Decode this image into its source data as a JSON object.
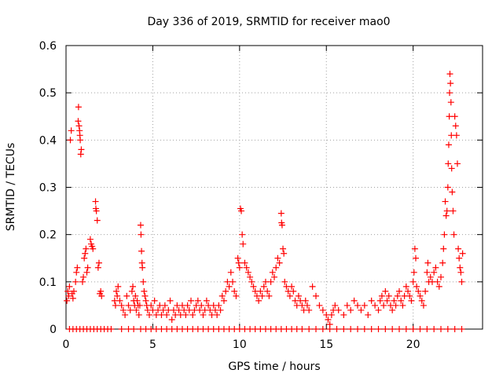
{
  "chart_data": {
    "type": "scatter",
    "title": "Day 336 of 2019, SRMTID for receiver mao0",
    "xlabel": "GPS time / hours",
    "ylabel": "SRMTID / TECUs",
    "xlim": [
      0,
      24
    ],
    "ylim": [
      0,
      0.6
    ],
    "xticks": [
      0,
      5,
      10,
      15,
      20
    ],
    "xtick_labels": [
      "0",
      "5",
      "10",
      "15",
      "20"
    ],
    "yticks": [
      0,
      0.1,
      0.2,
      0.3,
      0.4,
      0.5,
      0.6
    ],
    "ytick_labels": [
      "0",
      "0.1",
      "0.2",
      "0.3",
      "0.4",
      "0.5",
      "0.6"
    ],
    "grid": true,
    "marker": "+",
    "series": [
      {
        "name": "SRMTID",
        "color": "#ff0000",
        "points": [
          [
            0.05,
            0.06
          ],
          [
            0.1,
            0.08
          ],
          [
            0.15,
            0.07
          ],
          [
            0.2,
            0.09
          ],
          [
            0.25,
            0.4
          ],
          [
            0.3,
            0.42
          ],
          [
            0.35,
            0.075
          ],
          [
            0.4,
            0.065
          ],
          [
            0.45,
            0.08
          ],
          [
            0.55,
            0.1
          ],
          [
            0.6,
            0.12
          ],
          [
            0.65,
            0.13
          ],
          [
            0.7,
            0.44
          ],
          [
            0.72,
            0.47
          ],
          [
            0.75,
            0.43
          ],
          [
            0.78,
            0.42
          ],
          [
            0.8,
            0.41
          ],
          [
            0.82,
            0.4
          ],
          [
            0.85,
            0.37
          ],
          [
            0.88,
            0.38
          ],
          [
            0.95,
            0.1
          ],
          [
            1.0,
            0.11
          ],
          [
            1.05,
            0.15
          ],
          [
            1.1,
            0.16
          ],
          [
            1.15,
            0.17
          ],
          [
            1.2,
            0.12
          ],
          [
            1.25,
            0.13
          ],
          [
            1.4,
            0.19
          ],
          [
            1.45,
            0.18
          ],
          [
            1.5,
            0.175
          ],
          [
            1.55,
            0.17
          ],
          [
            1.7,
            0.27
          ],
          [
            1.72,
            0.255
          ],
          [
            1.75,
            0.25
          ],
          [
            1.8,
            0.23
          ],
          [
            1.85,
            0.13
          ],
          [
            1.9,
            0.14
          ],
          [
            1.95,
            0.075
          ],
          [
            2.0,
            0.08
          ],
          [
            2.05,
            0.07
          ],
          [
            2.8,
            0.06
          ],
          [
            2.85,
            0.05
          ],
          [
            2.9,
            0.08
          ],
          [
            2.95,
            0.07
          ],
          [
            3.0,
            0.09
          ],
          [
            3.1,
            0.06
          ],
          [
            3.2,
            0.05
          ],
          [
            3.3,
            0.04
          ],
          [
            3.4,
            0.03
          ],
          [
            3.5,
            0.07
          ],
          [
            3.6,
            0.05
          ],
          [
            3.7,
            0.04
          ],
          [
            3.8,
            0.08
          ],
          [
            3.85,
            0.09
          ],
          [
            3.9,
            0.06
          ],
          [
            3.95,
            0.05
          ],
          [
            4.0,
            0.07
          ],
          [
            4.05,
            0.04
          ],
          [
            4.1,
            0.06
          ],
          [
            4.15,
            0.05
          ],
          [
            4.2,
            0.03
          ],
          [
            4.25,
            0.05
          ],
          [
            4.3,
            0.22
          ],
          [
            4.32,
            0.2
          ],
          [
            4.35,
            0.165
          ],
          [
            4.38,
            0.14
          ],
          [
            4.4,
            0.13
          ],
          [
            4.45,
            0.1
          ],
          [
            4.5,
            0.08
          ],
          [
            4.55,
            0.07
          ],
          [
            4.6,
            0.06
          ],
          [
            4.65,
            0.05
          ],
          [
            4.7,
            0.04
          ],
          [
            4.8,
            0.03
          ],
          [
            4.9,
            0.05
          ],
          [
            5.0,
            0.04
          ],
          [
            5.1,
            0.06
          ],
          [
            5.2,
            0.03
          ],
          [
            5.3,
            0.04
          ],
          [
            5.4,
            0.05
          ],
          [
            5.5,
            0.03
          ],
          [
            5.6,
            0.04
          ],
          [
            5.7,
            0.05
          ],
          [
            5.8,
            0.03
          ],
          [
            5.9,
            0.04
          ],
          [
            6.0,
            0.06
          ],
          [
            6.1,
            0.02
          ],
          [
            6.2,
            0.04
          ],
          [
            6.3,
            0.03
          ],
          [
            6.4,
            0.05
          ],
          [
            6.5,
            0.04
          ],
          [
            6.6,
            0.03
          ],
          [
            6.7,
            0.05
          ],
          [
            6.8,
            0.04
          ],
          [
            6.9,
            0.03
          ],
          [
            7.0,
            0.05
          ],
          [
            7.1,
            0.04
          ],
          [
            7.2,
            0.06
          ],
          [
            7.3,
            0.03
          ],
          [
            7.4,
            0.04
          ],
          [
            7.5,
            0.05
          ],
          [
            7.6,
            0.06
          ],
          [
            7.7,
            0.04
          ],
          [
            7.8,
            0.05
          ],
          [
            7.9,
            0.03
          ],
          [
            8.0,
            0.04
          ],
          [
            8.1,
            0.06
          ],
          [
            8.2,
            0.05
          ],
          [
            8.3,
            0.04
          ],
          [
            8.4,
            0.03
          ],
          [
            8.5,
            0.05
          ],
          [
            8.6,
            0.04
          ],
          [
            8.7,
            0.03
          ],
          [
            8.8,
            0.05
          ],
          [
            8.9,
            0.04
          ],
          [
            9.0,
            0.07
          ],
          [
            9.1,
            0.06
          ],
          [
            9.2,
            0.08
          ],
          [
            9.3,
            0.1
          ],
          [
            9.4,
            0.09
          ],
          [
            9.5,
            0.12
          ],
          [
            9.6,
            0.1
          ],
          [
            9.7,
            0.08
          ],
          [
            9.8,
            0.07
          ],
          [
            9.9,
            0.15
          ],
          [
            9.95,
            0.14
          ],
          [
            10.0,
            0.13
          ],
          [
            10.05,
            0.255
          ],
          [
            10.1,
            0.25
          ],
          [
            10.15,
            0.2
          ],
          [
            10.2,
            0.18
          ],
          [
            10.3,
            0.14
          ],
          [
            10.4,
            0.13
          ],
          [
            10.5,
            0.12
          ],
          [
            10.6,
            0.11
          ],
          [
            10.7,
            0.1
          ],
          [
            10.8,
            0.09
          ],
          [
            10.9,
            0.08
          ],
          [
            11.0,
            0.07
          ],
          [
            11.1,
            0.06
          ],
          [
            11.2,
            0.08
          ],
          [
            11.3,
            0.07
          ],
          [
            11.4,
            0.09
          ],
          [
            11.5,
            0.1
          ],
          [
            11.6,
            0.08
          ],
          [
            11.7,
            0.07
          ],
          [
            11.8,
            0.1
          ],
          [
            11.9,
            0.12
          ],
          [
            12.0,
            0.11
          ],
          [
            12.1,
            0.13
          ],
          [
            12.2,
            0.15
          ],
          [
            12.3,
            0.14
          ],
          [
            12.4,
            0.245
          ],
          [
            12.42,
            0.225
          ],
          [
            12.45,
            0.22
          ],
          [
            12.5,
            0.17
          ],
          [
            12.55,
            0.16
          ],
          [
            12.6,
            0.1
          ],
          [
            12.7,
            0.09
          ],
          [
            12.8,
            0.08
          ],
          [
            12.9,
            0.07
          ],
          [
            13.0,
            0.09
          ],
          [
            13.1,
            0.08
          ],
          [
            13.2,
            0.06
          ],
          [
            13.3,
            0.05
          ],
          [
            13.4,
            0.07
          ],
          [
            13.5,
            0.06
          ],
          [
            13.6,
            0.05
          ],
          [
            13.7,
            0.04
          ],
          [
            13.8,
            0.06
          ],
          [
            13.9,
            0.05
          ],
          [
            14.0,
            0.04
          ],
          [
            14.2,
            0.09
          ],
          [
            14.4,
            0.07
          ],
          [
            14.6,
            0.05
          ],
          [
            14.8,
            0.04
          ],
          [
            15.0,
            0.03
          ],
          [
            15.1,
            0.02
          ],
          [
            15.2,
            0.01
          ],
          [
            15.3,
            0.03
          ],
          [
            15.4,
            0.04
          ],
          [
            15.5,
            0.05
          ],
          [
            15.7,
            0.04
          ],
          [
            16.0,
            0.03
          ],
          [
            16.2,
            0.05
          ],
          [
            16.4,
            0.04
          ],
          [
            16.6,
            0.06
          ],
          [
            16.8,
            0.05
          ],
          [
            17.0,
            0.04
          ],
          [
            17.2,
            0.05
          ],
          [
            17.4,
            0.03
          ],
          [
            17.6,
            0.06
          ],
          [
            17.8,
            0.05
          ],
          [
            18.0,
            0.04
          ],
          [
            18.1,
            0.06
          ],
          [
            18.2,
            0.07
          ],
          [
            18.3,
            0.05
          ],
          [
            18.4,
            0.08
          ],
          [
            18.5,
            0.06
          ],
          [
            18.6,
            0.07
          ],
          [
            18.7,
            0.05
          ],
          [
            18.8,
            0.04
          ],
          [
            18.9,
            0.06
          ],
          [
            19.0,
            0.05
          ],
          [
            19.1,
            0.07
          ],
          [
            19.2,
            0.08
          ],
          [
            19.3,
            0.06
          ],
          [
            19.4,
            0.05
          ],
          [
            19.5,
            0.07
          ],
          [
            19.6,
            0.09
          ],
          [
            19.7,
            0.08
          ],
          [
            19.8,
            0.07
          ],
          [
            19.9,
            0.06
          ],
          [
            20.0,
            0.1
          ],
          [
            20.05,
            0.12
          ],
          [
            20.1,
            0.17
          ],
          [
            20.15,
            0.15
          ],
          [
            20.2,
            0.09
          ],
          [
            20.3,
            0.08
          ],
          [
            20.4,
            0.07
          ],
          [
            20.5,
            0.06
          ],
          [
            20.6,
            0.05
          ],
          [
            20.7,
            0.08
          ],
          [
            20.8,
            0.12
          ],
          [
            20.85,
            0.14
          ],
          [
            20.9,
            0.1
          ],
          [
            21.0,
            0.11
          ],
          [
            21.1,
            0.1
          ],
          [
            21.2,
            0.12
          ],
          [
            21.3,
            0.13
          ],
          [
            21.4,
            0.1
          ],
          [
            21.5,
            0.09
          ],
          [
            21.6,
            0.11
          ],
          [
            21.7,
            0.14
          ],
          [
            21.75,
            0.17
          ],
          [
            21.8,
            0.2
          ],
          [
            21.85,
            0.27
          ],
          [
            21.9,
            0.24
          ],
          [
            21.95,
            0.25
          ],
          [
            22.0,
            0.3
          ],
          [
            22.02,
            0.35
          ],
          [
            22.05,
            0.39
          ],
          [
            22.08,
            0.45
          ],
          [
            22.1,
            0.5
          ],
          [
            22.12,
            0.54
          ],
          [
            22.15,
            0.52
          ],
          [
            22.18,
            0.48
          ],
          [
            22.2,
            0.41
          ],
          [
            22.22,
            0.34
          ],
          [
            22.25,
            0.29
          ],
          [
            22.3,
            0.25
          ],
          [
            22.35,
            0.2
          ],
          [
            22.4,
            0.45
          ],
          [
            22.45,
            0.43
          ],
          [
            22.5,
            0.41
          ],
          [
            22.55,
            0.35
          ],
          [
            22.6,
            0.17
          ],
          [
            22.65,
            0.15
          ],
          [
            22.7,
            0.13
          ],
          [
            22.75,
            0.12
          ],
          [
            22.8,
            0.1
          ],
          [
            22.85,
            0.16
          ]
        ],
        "zero_points_x": [
          0.2,
          0.4,
          0.6,
          0.8,
          1.0,
          1.2,
          1.4,
          1.6,
          1.8,
          2.0,
          2.2,
          2.4,
          2.6,
          3.2,
          3.6,
          3.9,
          4.3,
          4.6,
          4.9,
          5.2,
          5.5,
          5.8,
          6.1,
          6.4,
          6.7,
          7.0,
          7.3,
          7.6,
          7.9,
          8.2,
          8.5,
          8.8,
          9.1,
          9.4,
          9.7,
          10.0,
          10.3,
          10.6,
          10.9,
          11.2,
          11.5,
          11.8,
          12.1,
          12.4,
          12.7,
          13.0,
          13.3,
          13.6,
          14.0,
          14.4,
          14.8,
          15.2,
          15.6,
          16.0,
          16.4,
          16.8,
          17.2,
          17.6,
          18.0,
          18.4,
          18.8,
          19.2,
          19.6,
          20.0,
          20.4,
          20.8,
          21.2,
          21.6,
          22.0,
          22.4,
          22.8
        ]
      }
    ]
  }
}
